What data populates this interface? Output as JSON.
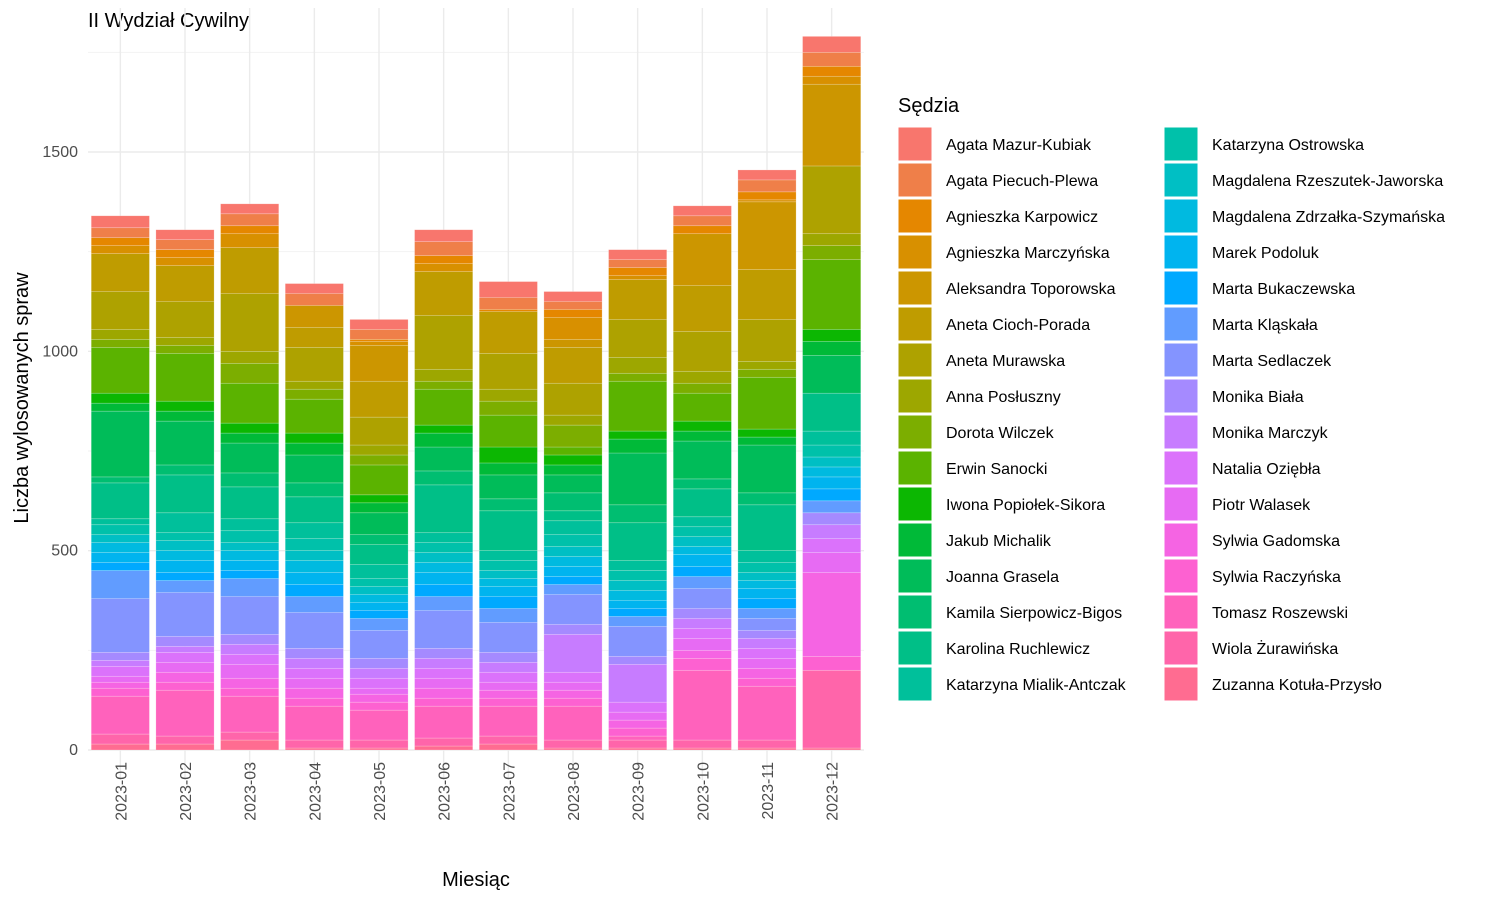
{
  "chart_data": {
    "type": "bar",
    "stacked": true,
    "title": "II Wydział Cywilny",
    "xlabel": "Miesiąc",
    "ylabel": "Liczba wylosowanych spraw",
    "ylim": [
      0,
      1800
    ],
    "yticks": [
      0,
      500,
      1000,
      1500
    ],
    "grid": true,
    "legend_title": "Sędzia",
    "legend_position": "right",
    "categories": [
      "2023-01",
      "2023-02",
      "2023-03",
      "2023-04",
      "2023-05",
      "2023-06",
      "2023-07",
      "2023-08",
      "2023-09",
      "2023-10",
      "2023-11",
      "2023-12"
    ],
    "series": [
      {
        "name": "Agata Mazur-Kubiak",
        "color": "#F8766D",
        "values": [
          30,
          25,
          25,
          25,
          25,
          30,
          40,
          25,
          25,
          25,
          25,
          40
        ]
      },
      {
        "name": "Agata Piecuch-Plewa",
        "color": "#EF7F49",
        "values": [
          25,
          25,
          30,
          30,
          25,
          35,
          30,
          20,
          20,
          25,
          30,
          35
        ]
      },
      {
        "name": "Agnieszka Karpowicz",
        "color": "#E58700",
        "values": [
          20,
          20,
          20,
          0,
          5,
          20,
          5,
          20,
          20,
          20,
          20,
          25
        ]
      },
      {
        "name": "Agnieszka Marczyńska",
        "color": "#D89000",
        "values": [
          20,
          20,
          35,
          0,
          10,
          20,
          0,
          55,
          10,
          0,
          5,
          20
        ]
      },
      {
        "name": "Aleksandra Toporowska",
        "color": "#CC9600",
        "values": [
          0,
          0,
          0,
          55,
          90,
          0,
          0,
          20,
          0,
          130,
          170,
          205
        ]
      },
      {
        "name": "Aneta Cioch-Porada",
        "color": "#BF9C00",
        "values": [
          95,
          90,
          115,
          50,
          90,
          110,
          105,
          90,
          100,
          115,
          125,
          0
        ]
      },
      {
        "name": "Aneta Murawska",
        "color": "#AEA200",
        "values": [
          95,
          90,
          145,
          85,
          70,
          135,
          90,
          80,
          95,
          100,
          105,
          170
        ]
      },
      {
        "name": "Anna Posłuszny",
        "color": "#9DA700",
        "values": [
          25,
          20,
          30,
          20,
          25,
          30,
          30,
          25,
          40,
          30,
          20,
          30
        ]
      },
      {
        "name": "Dorota Wilczek",
        "color": "#7CAE00",
        "values": [
          20,
          20,
          50,
          25,
          25,
          20,
          35,
          55,
          20,
          25,
          20,
          35
        ]
      },
      {
        "name": "Erwin Sanocki",
        "color": "#5BB300",
        "values": [
          115,
          120,
          100,
          85,
          75,
          90,
          80,
          20,
          125,
          70,
          130,
          175
        ]
      },
      {
        "name": "Iwona Popiołek-Sikora",
        "color": "#0CB702",
        "values": [
          25,
          25,
          25,
          25,
          20,
          20,
          40,
          25,
          20,
          25,
          20,
          30
        ]
      },
      {
        "name": "Jakub Michalik",
        "color": "#00BA38",
        "values": [
          20,
          25,
          25,
          30,
          25,
          35,
          30,
          25,
          35,
          25,
          20,
          35
        ]
      },
      {
        "name": "Joanna Grasela",
        "color": "#00BC59",
        "values": [
          165,
          110,
          75,
          70,
          55,
          60,
          60,
          45,
          130,
          95,
          120,
          95
        ]
      },
      {
        "name": "Kamila Sierpowicz-Bigos",
        "color": "#00BE71",
        "values": [
          15,
          25,
          35,
          35,
          25,
          35,
          30,
          45,
          45,
          25,
          30,
          0
        ]
      },
      {
        "name": "Karolina Ruchlewicz",
        "color": "#00BF87",
        "values": [
          90,
          95,
          80,
          65,
          50,
          120,
          100,
          25,
          95,
          70,
          115,
          95
        ]
      },
      {
        "name": "Katarzyna Mialik-Antczak",
        "color": "#00C09B",
        "values": [
          15,
          50,
          30,
          40,
          35,
          25,
          25,
          35,
          25,
          25,
          30,
          35
        ]
      },
      {
        "name": "Katarzyna Ostrowska",
        "color": "#00C1AA",
        "values": [
          25,
          20,
          30,
          30,
          20,
          25,
          25,
          30,
          25,
          25,
          25,
          30
        ]
      },
      {
        "name": "Magdalena Rzeszutek-Jaworska",
        "color": "#00BFC4",
        "values": [
          20,
          25,
          20,
          25,
          20,
          25,
          20,
          25,
          25,
          25,
          20,
          25
        ]
      },
      {
        "name": "Magdalena Zdrzałka-Szymańska",
        "color": "#00BAE0",
        "values": [
          25,
          25,
          25,
          30,
          20,
          25,
          20,
          25,
          25,
          20,
          20,
          25
        ]
      },
      {
        "name": "Marek Podoluk",
        "color": "#00B4EF",
        "values": [
          25,
          30,
          25,
          30,
          20,
          30,
          25,
          25,
          20,
          30,
          25,
          30
        ]
      },
      {
        "name": "Marta Bukaczewska",
        "color": "#00A9FF",
        "values": [
          20,
          20,
          20,
          30,
          20,
          30,
          30,
          20,
          20,
          25,
          25,
          30
        ]
      },
      {
        "name": "Marta Kląskała",
        "color": "#619CFF",
        "values": [
          70,
          30,
          45,
          40,
          30,
          35,
          35,
          25,
          25,
          30,
          25,
          30
        ]
      },
      {
        "name": "Marta Sedlaczek",
        "color": "#8494FF",
        "values": [
          135,
          110,
          95,
          90,
          70,
          95,
          75,
          75,
          75,
          50,
          30,
          0
        ]
      },
      {
        "name": "Monika Biała",
        "color": "#A58AFF",
        "values": [
          20,
          25,
          25,
          25,
          25,
          25,
          25,
          25,
          20,
          25,
          20,
          30
        ]
      },
      {
        "name": "Monika Marczyk",
        "color": "#C77CFF",
        "values": [
          15,
          15,
          25,
          25,
          25,
          25,
          25,
          95,
          95,
          25,
          25,
          35
        ]
      },
      {
        "name": "Natalia Oziębła",
        "color": "#DB72FB",
        "values": [
          25,
          25,
          25,
          25,
          25,
          25,
          25,
          25,
          25,
          25,
          25,
          35
        ]
      },
      {
        "name": "Piotr Walasek",
        "color": "#E76BF3",
        "values": [
          15,
          25,
          35,
          25,
          15,
          25,
          20,
          20,
          20,
          30,
          25,
          50
        ]
      },
      {
        "name": "Sylwia Gadomska",
        "color": "#F564E3",
        "values": [
          15,
          25,
          25,
          25,
          20,
          25,
          20,
          20,
          20,
          20,
          25,
          210
        ]
      },
      {
        "name": "Sylwia Raczyńska",
        "color": "#FD61D1",
        "values": [
          20,
          20,
          20,
          20,
          20,
          20,
          20,
          20,
          20,
          30,
          20,
          35
        ]
      },
      {
        "name": "Tomasz Roszewski",
        "color": "#FF62BC",
        "values": [
          95,
          115,
          90,
          85,
          75,
          80,
          75,
          85,
          10,
          175,
          135,
          0
        ]
      },
      {
        "name": "Wiola Żurawińska",
        "color": "#FF65AA",
        "values": [
          25,
          20,
          20,
          20,
          20,
          20,
          20,
          20,
          20,
          20,
          20,
          195
        ]
      },
      {
        "name": "Zuzanna Kotuła-Przysło",
        "color": "#FF6C91",
        "values": [
          15,
          15,
          25,
          5,
          5,
          10,
          15,
          5,
          5,
          5,
          5,
          5
        ]
      }
    ]
  }
}
